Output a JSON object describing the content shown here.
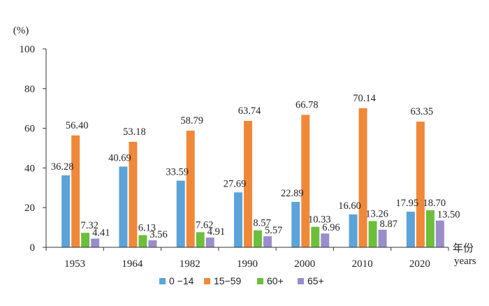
{
  "chart_data": {
    "type": "bar",
    "categories": [
      "1953",
      "1964",
      "1982",
      "1990",
      "2000",
      "2010",
      "2020"
    ],
    "series": [
      {
        "name": "0 −14",
        "color": "#5ba3d8",
        "values": [
          36.28,
          40.69,
          33.59,
          27.69,
          22.89,
          16.6,
          17.95
        ]
      },
      {
        "name": "15−59",
        "color": "#f0883a",
        "values": [
          56.4,
          53.18,
          58.79,
          63.74,
          66.78,
          70.14,
          63.35
        ]
      },
      {
        "name": "60+",
        "color": "#6cbf3d",
        "values": [
          7.32,
          6.13,
          7.62,
          8.57,
          10.33,
          13.26,
          18.7
        ]
      },
      {
        "name": "65+",
        "color": "#9b8ccb",
        "values": [
          4.41,
          3.56,
          4.91,
          5.57,
          6.96,
          8.87,
          13.5
        ]
      }
    ],
    "value_labels": [
      [
        "36.28",
        "40.69",
        "33.59",
        "27.69",
        "22.89",
        "16.60",
        "17.95"
      ],
      [
        "56.40",
        "53.18",
        "58.79",
        "63.74",
        "66.78",
        "70.14",
        "63.35"
      ],
      [
        "7.32",
        "6.13",
        "7.62",
        "8.57",
        "10.33",
        "13.26",
        "18.70"
      ],
      [
        "4.41",
        "3.56",
        "4.91",
        "5.57",
        "6.96",
        "8.87",
        "13.50"
      ]
    ],
    "ylabel": "(%)",
    "xlabel_cn": "年份",
    "xlabel_en": "years",
    "ylim": [
      0,
      100
    ],
    "yticks": [
      "0",
      "20",
      "40",
      "60",
      "80",
      "100"
    ],
    "grid": false,
    "legend_position": "bottom-center"
  }
}
